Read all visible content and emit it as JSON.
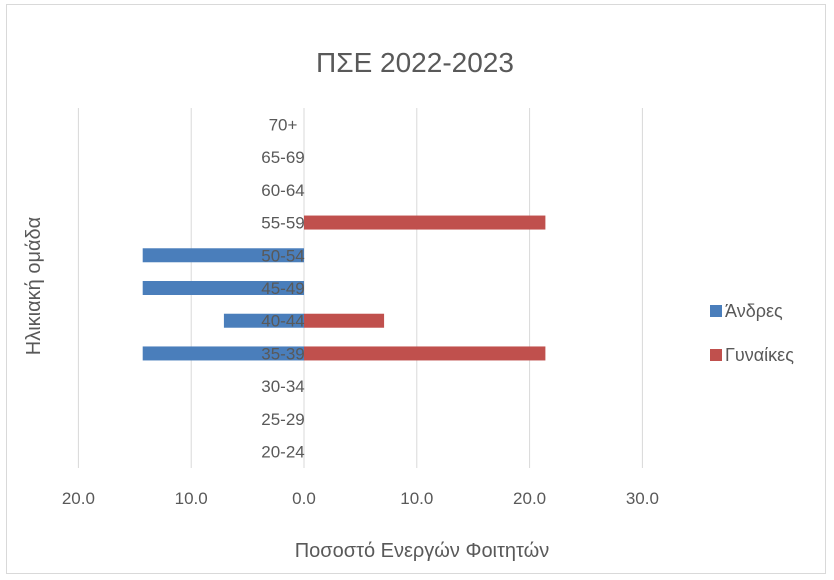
{
  "chart_data": {
    "type": "bar",
    "orientation": "horizontal",
    "title": "ΠΣΕ 2022-2023",
    "xlabel": "Ποσοστό Ενεργών Φοιτητών",
    "ylabel": "Ηλικιακή ομάδα",
    "categories": [
      "20-24",
      "25-29",
      "30-34",
      "35-39",
      "40-44",
      "45-49",
      "50-54",
      "55-59",
      "60-64",
      "65-69",
      "70+"
    ],
    "series": [
      {
        "name": "Άνδρες",
        "color": "#4a7ebb",
        "values": [
          0,
          0,
          0,
          -14.3,
          -7.1,
          -14.3,
          -14.3,
          0,
          0,
          0,
          0
        ]
      },
      {
        "name": "Γυναίκες",
        "color": "#c0504d",
        "values": [
          0,
          0,
          0,
          21.4,
          7.1,
          0,
          0,
          21.4,
          0,
          0,
          0
        ]
      }
    ],
    "xlim": [
      -20,
      30
    ],
    "xticks": [
      -20,
      -10,
      0,
      10,
      20,
      30
    ],
    "xtick_labels": [
      "20.0",
      "10.0",
      "0.0",
      "10.0",
      "20.0",
      "30.0"
    ],
    "grid": "vertical",
    "legend": "right"
  }
}
